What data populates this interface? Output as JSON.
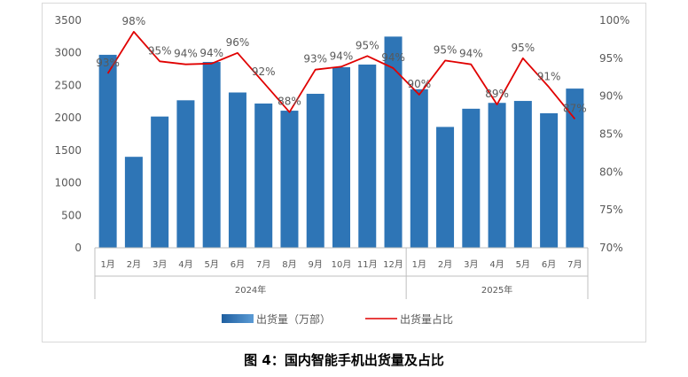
{
  "caption": "图 4：国内智能手机出货量及占比",
  "chart_data": {
    "type": "bar",
    "title": "",
    "groups": [
      {
        "label": "2024年",
        "count": 12
      },
      {
        "label": "2025年",
        "count": 7
      }
    ],
    "categories": [
      "1月",
      "2月",
      "3月",
      "4月",
      "5月",
      "6月",
      "7月",
      "8月",
      "9月",
      "10月",
      "11月",
      "12月",
      "1月",
      "2月",
      "3月",
      "4月",
      "5月",
      "6月",
      "7月"
    ],
    "series": [
      {
        "name": "出货量（万部）",
        "kind": "bar",
        "axis": "left",
        "color": "#2e75b6",
        "values": [
          2970,
          1400,
          2020,
          2270,
          2860,
          2390,
          2220,
          2110,
          2370,
          2780,
          2820,
          3250,
          2440,
          1860,
          2140,
          2230,
          2260,
          2070,
          2450
        ]
      },
      {
        "name": "出货量占比",
        "kind": "line",
        "axis": "right",
        "color": "#e00000",
        "values": [
          93,
          98.5,
          94.6,
          94.2,
          94.3,
          95.7,
          91.8,
          87.9,
          93.5,
          93.9,
          95.3,
          93.7,
          90.2,
          94.7,
          94.2,
          88.9,
          95,
          91.2,
          87
        ],
        "labels": [
          "93%",
          "98%",
          "95%",
          "94%",
          "94%",
          "96%",
          "92%",
          "88%",
          "93%",
          "94%",
          "95%",
          "94%",
          "90%",
          "95%",
          "94%",
          "89%",
          "95%",
          "91%",
          "87%"
        ]
      }
    ],
    "y_left": {
      "min": 0,
      "max": 3500,
      "step": 500,
      "ticks": [
        "0",
        "500",
        "1000",
        "1500",
        "2000",
        "2500",
        "3000",
        "3500"
      ]
    },
    "y_right": {
      "min": 70,
      "max": 100,
      "step": 5,
      "ticks": [
        "70%",
        "75%",
        "80%",
        "85%",
        "90%",
        "95%",
        "100%"
      ]
    },
    "grid": false,
    "legend": "bottom"
  }
}
